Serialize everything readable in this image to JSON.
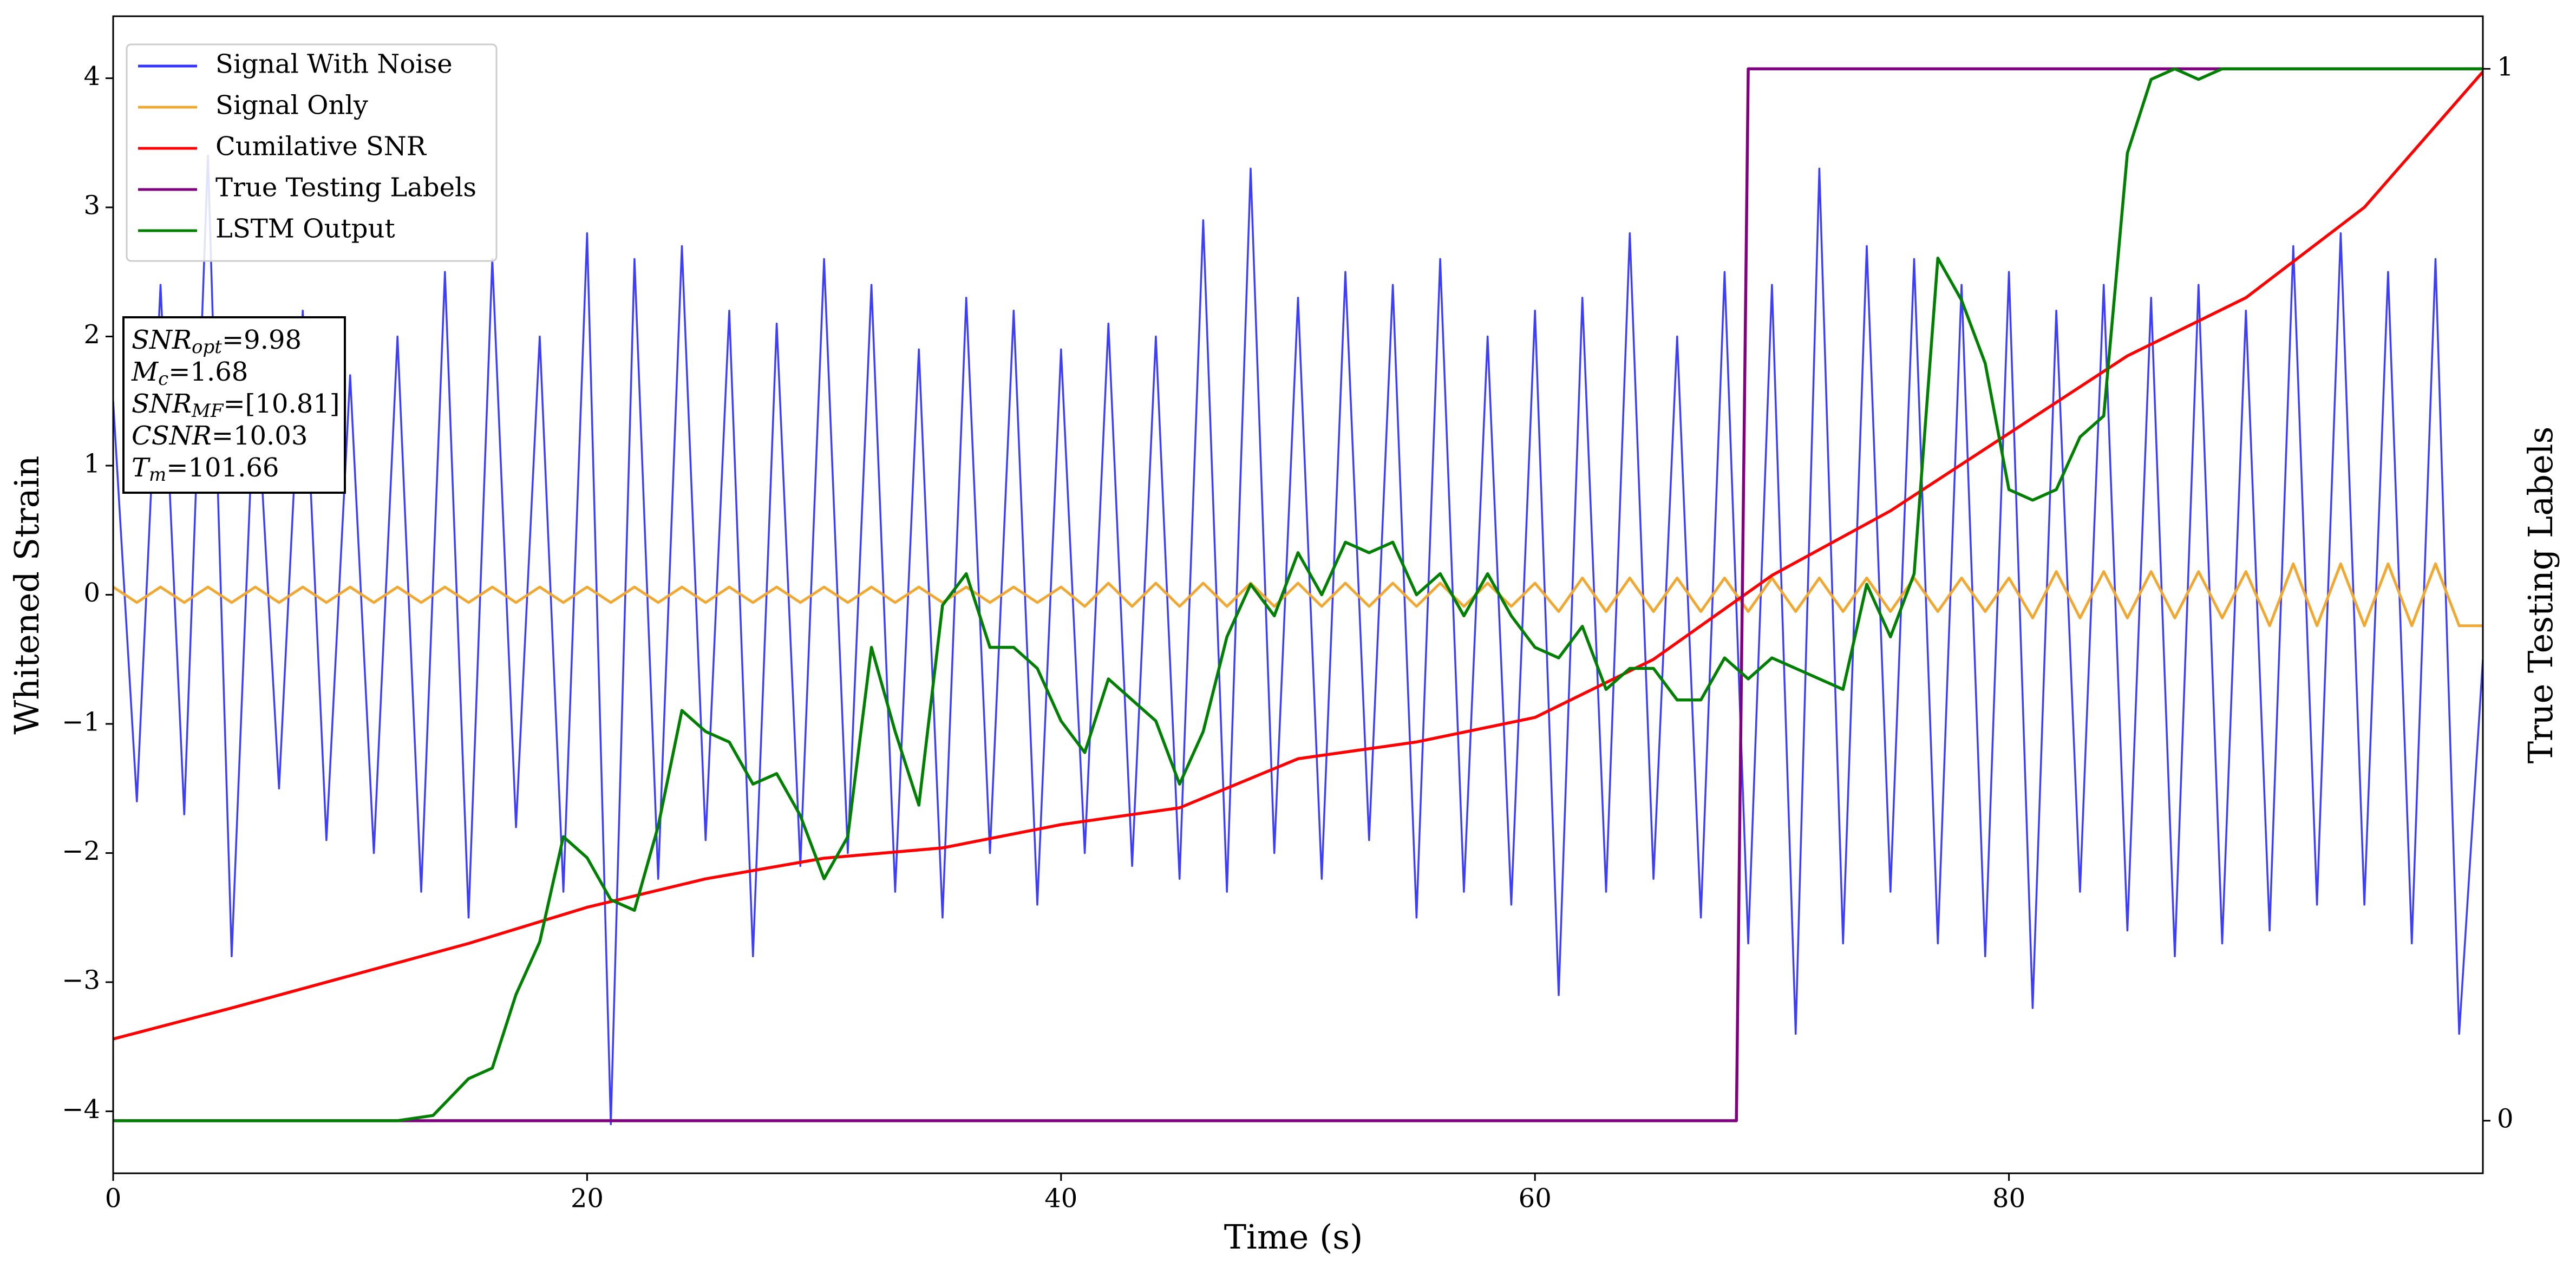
{
  "chart_data": {
    "type": "line",
    "xlabel": "Time (s)",
    "ylabel": "Whitened Strain",
    "y2label": "True Testing Labels",
    "xlim": [
      0,
      100
    ],
    "xticks": [
      0,
      20,
      40,
      60,
      80
    ],
    "ylim": [
      -4.48,
      4.48
    ],
    "yticks": [
      {
        "value": -4,
        "label": "−4"
      },
      {
        "value": -3,
        "label": "−3"
      },
      {
        "value": -2,
        "label": "−2"
      },
      {
        "value": -1,
        "label": "−1"
      },
      0,
      1,
      2,
      3,
      4
    ],
    "y2lim": [
      -0.05,
      1.05
    ],
    "y2ticks": [
      0,
      1
    ],
    "legend": "upper left",
    "series": [
      {
        "name": "Signal With Noise",
        "color": "#3333ff",
        "x": [
          0,
          1,
          2,
          3,
          4,
          5,
          6,
          7,
          8,
          9,
          10,
          11,
          12,
          13,
          14,
          15,
          16,
          17,
          18,
          19,
          20,
          21,
          22,
          23,
          24,
          25,
          26,
          27,
          28,
          29,
          30,
          31,
          32,
          33,
          34,
          35,
          36,
          37,
          38,
          39,
          40,
          41,
          42,
          43,
          44,
          45,
          46,
          47,
          48,
          49,
          50,
          51,
          52,
          53,
          54,
          55,
          56,
          57,
          58,
          59,
          60,
          61,
          62,
          63,
          64,
          65,
          66,
          67,
          68,
          69,
          70,
          71,
          72,
          73,
          74,
          75,
          76,
          77,
          78,
          79,
          80,
          81,
          82,
          83,
          84,
          85,
          86,
          87,
          88,
          89,
          90,
          91,
          92,
          93,
          94,
          95,
          96,
          97,
          98,
          99,
          100
        ],
        "values": [
          1.5,
          -1.6,
          2.4,
          -1.7,
          3.4,
          -2.8,
          1.8,
          -1.5,
          2.2,
          -1.9,
          1.7,
          -2.0,
          2.0,
          -2.3,
          2.5,
          -2.5,
          2.6,
          -1.8,
          2.0,
          -2.3,
          2.8,
          -4.1,
          2.6,
          -2.2,
          2.7,
          -1.9,
          2.2,
          -2.8,
          2.1,
          -2.1,
          2.6,
          -2.0,
          2.4,
          -2.3,
          1.9,
          -2.5,
          2.3,
          -2.0,
          2.2,
          -2.4,
          1.9,
          -2.0,
          2.1,
          -2.1,
          2.0,
          -2.2,
          2.9,
          -2.3,
          3.3,
          -2.0,
          2.3,
          -2.2,
          2.5,
          -1.9,
          2.4,
          -2.5,
          2.6,
          -2.3,
          2.0,
          -2.4,
          2.2,
          -3.1,
          2.3,
          -2.3,
          2.8,
          -2.2,
          2.0,
          -2.5,
          2.5,
          -2.7,
          2.4,
          -3.4,
          3.3,
          -2.7,
          2.7,
          -2.3,
          2.6,
          -2.7,
          2.4,
          -2.8,
          2.5,
          -3.2,
          2.2,
          -2.3,
          2.4,
          -2.6,
          2.3,
          -2.8,
          2.4,
          -2.7,
          2.2,
          -2.6,
          2.7,
          -2.4,
          2.8,
          -2.4,
          2.5,
          -2.7,
          2.6,
          -3.4,
          -0.5
        ]
      },
      {
        "name": "Signal Only",
        "color": "#f0a830",
        "x": [
          0,
          1,
          2,
          3,
          4,
          5,
          6,
          7,
          8,
          9,
          10,
          11,
          12,
          13,
          14,
          15,
          16,
          17,
          18,
          19,
          20,
          21,
          22,
          23,
          24,
          25,
          26,
          27,
          28,
          29,
          30,
          31,
          32,
          33,
          34,
          35,
          36,
          37,
          38,
          39,
          40,
          41,
          42,
          43,
          44,
          45,
          46,
          47,
          48,
          49,
          50,
          51,
          52,
          53,
          54,
          55,
          56,
          57,
          58,
          59,
          60,
          61,
          62,
          63,
          64,
          65,
          66,
          67,
          68,
          69,
          70,
          71,
          72,
          73,
          74,
          75,
          76,
          77,
          78,
          79,
          80,
          81,
          82,
          83,
          84,
          85,
          86,
          87,
          88,
          89,
          90,
          91,
          92,
          93,
          94,
          95,
          96,
          97,
          98,
          99,
          100
        ],
        "values": [
          0.06,
          -0.06,
          0.06,
          -0.06,
          0.06,
          -0.06,
          0.06,
          -0.06,
          0.06,
          -0.06,
          0.06,
          -0.06,
          0.06,
          -0.06,
          0.06,
          -0.06,
          0.06,
          -0.06,
          0.06,
          -0.06,
          0.06,
          -0.06,
          0.06,
          -0.06,
          0.06,
          -0.06,
          0.06,
          -0.06,
          0.06,
          -0.06,
          0.06,
          -0.06,
          0.06,
          -0.06,
          0.06,
          -0.06,
          0.06,
          -0.06,
          0.06,
          -0.06,
          0.06,
          -0.09,
          0.09,
          -0.09,
          0.09,
          -0.09,
          0.09,
          -0.09,
          0.09,
          -0.09,
          0.09,
          -0.09,
          0.09,
          -0.09,
          0.09,
          -0.09,
          0.09,
          -0.09,
          0.09,
          -0.09,
          0.09,
          -0.13,
          0.13,
          -0.13,
          0.13,
          -0.13,
          0.13,
          -0.13,
          0.13,
          -0.13,
          0.13,
          -0.13,
          0.13,
          -0.13,
          0.13,
          -0.13,
          0.13,
          -0.13,
          0.13,
          -0.13,
          0.13,
          -0.18,
          0.18,
          -0.18,
          0.18,
          -0.18,
          0.18,
          -0.18,
          0.18,
          -0.18,
          0.18,
          -0.24,
          0.24,
          -0.24,
          0.24,
          -0.24,
          0.24,
          -0.24,
          0.24,
          -0.24,
          -0.24
        ]
      },
      {
        "name": "Cumilative SNR",
        "color": "#ff0000",
        "x": [
          0,
          5,
          10,
          15,
          20,
          25,
          30,
          35,
          40,
          45,
          50,
          55,
          60,
          65,
          70,
          75,
          80,
          85,
          90,
          95,
          100
        ],
        "values": [
          -3.44,
          -3.2,
          -2.95,
          -2.7,
          -2.42,
          -2.2,
          -2.04,
          -1.96,
          -1.78,
          -1.65,
          -1.27,
          -1.14,
          -0.95,
          -0.5,
          0.15,
          0.65,
          1.25,
          1.85,
          2.3,
          3.0,
          4.05
        ]
      },
      {
        "name": "True Testing Labels",
        "color": "#800080",
        "axis": "y2",
        "x": [
          0,
          68.5,
          69,
          100
        ],
        "values": [
          0,
          0,
          1,
          1
        ]
      },
      {
        "name": "LSTM Output",
        "color": "#008000",
        "axis": "y2",
        "x": [
          0,
          12,
          13.5,
          15,
          16,
          17,
          18,
          19,
          20,
          21,
          22,
          23,
          24,
          25,
          26,
          27,
          28,
          29,
          30,
          31,
          32,
          33,
          34,
          35,
          36,
          37,
          38,
          39,
          40,
          41,
          42,
          43,
          44,
          45,
          46,
          47,
          48,
          49,
          50,
          51,
          52,
          53,
          54,
          55,
          56,
          57,
          58,
          59,
          60,
          61,
          62,
          63,
          64,
          65,
          66,
          67,
          68,
          69,
          70,
          71,
          72,
          73,
          74,
          75,
          76,
          77,
          78,
          79,
          80,
          81,
          82,
          83,
          84,
          85,
          86,
          87,
          88,
          89,
          90,
          95,
          100
        ],
        "values": [
          0,
          0,
          0.005,
          0.04,
          0.05,
          0.12,
          0.17,
          0.27,
          0.25,
          0.21,
          0.2,
          0.28,
          0.39,
          0.37,
          0.36,
          0.32,
          0.33,
          0.29,
          0.23,
          0.27,
          0.45,
          0.37,
          0.3,
          0.49,
          0.52,
          0.45,
          0.45,
          0.43,
          0.38,
          0.35,
          0.42,
          0.4,
          0.38,
          0.32,
          0.37,
          0.46,
          0.51,
          0.48,
          0.54,
          0.5,
          0.55,
          0.54,
          0.55,
          0.5,
          0.52,
          0.48,
          0.52,
          0.48,
          0.45,
          0.44,
          0.47,
          0.41,
          0.43,
          0.43,
          0.4,
          0.4,
          0.44,
          0.42,
          0.44,
          0.43,
          0.42,
          0.41,
          0.51,
          0.46,
          0.52,
          0.82,
          0.78,
          0.72,
          0.6,
          0.59,
          0.6,
          0.65,
          0.67,
          0.92,
          0.99,
          1.0,
          0.99,
          1.0,
          1.0,
          1.0,
          1.0
        ]
      }
    ],
    "annotation": [
      {
        "main": "SNR",
        "sub": "opt",
        "rest": "=9.98"
      },
      {
        "main": "M",
        "sub": "c",
        "rest": "=1.68"
      },
      {
        "main": "SNR",
        "sub": "MF",
        "rest": "=[10.81]"
      },
      {
        "main": "CSNR",
        "rest": "=10.03"
      },
      {
        "main": "T",
        "sub": "m",
        "rest": "=101.66"
      }
    ]
  }
}
